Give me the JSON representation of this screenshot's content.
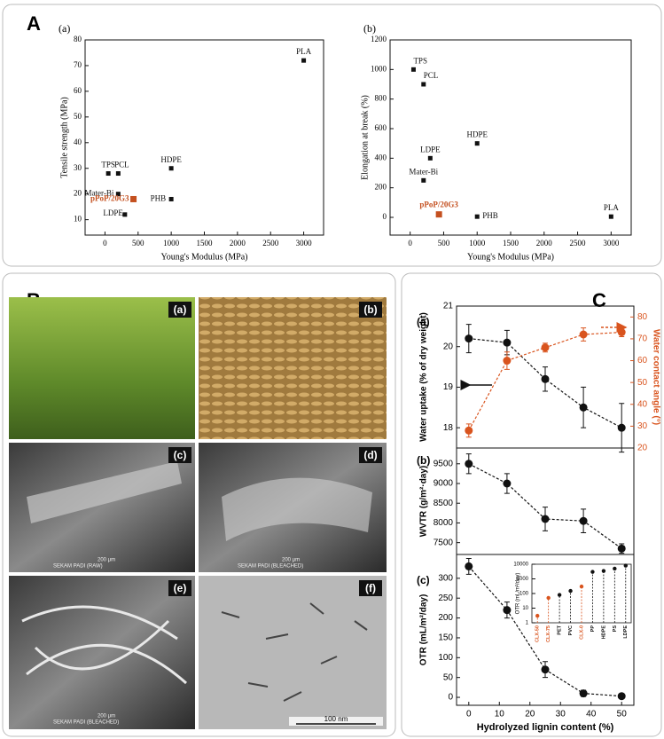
{
  "panel_letters": [
    "A",
    "B",
    "C"
  ],
  "photo_labels": [
    "(a)",
    "(b)",
    "(c)",
    "(d)",
    "(e)",
    "(f)"
  ],
  "sem_scale": "200 μm",
  "sem_captions": [
    "SEKAM PADI (RAW)",
    "SEKAM PADI (BLEACHED)",
    "SEKAM PADI (BLEACHED)"
  ],
  "tem_scale": "100 nm",
  "chart_data": [
    {
      "type": "scatter",
      "panel": "(a)",
      "xlabel": "Young's Modulus (MPa)",
      "ylabel": "Tensile strength (MPa)",
      "labels": [
        "TPS",
        "PCL",
        "Mater-Bi",
        "LDPE",
        "pPoP/20G3",
        "HDPE",
        "PHB",
        "PLA"
      ],
      "x": [
        50,
        200,
        200,
        300,
        430,
        1000,
        1000,
        3000
      ],
      "values": [
        28,
        28,
        20,
        12,
        18,
        30,
        18,
        72
      ],
      "colors": [
        "#111111",
        "#111111",
        "#111111",
        "#111111",
        "#c4501f",
        "#111111",
        "#111111",
        "#111111"
      ],
      "xlim": [
        -300,
        3300
      ],
      "ylim": [
        4,
        80
      ],
      "xticks": [
        0,
        500,
        1000,
        1500,
        2000,
        2500,
        3000
      ],
      "yticks": [
        10,
        20,
        30,
        40,
        50,
        60,
        70,
        80
      ]
    },
    {
      "type": "scatter",
      "panel": "(b)",
      "xlabel": "Young's Modulus (MPa)",
      "ylabel": "Elongation at break (%)",
      "labels": [
        "TPS",
        "PCL",
        "HDPE",
        "LDPE",
        "Mater-Bi",
        "pPoP/20G3",
        "PHB",
        "PLA"
      ],
      "x": [
        50,
        200,
        1000,
        300,
        200,
        430,
        1000,
        3000
      ],
      "values": [
        1000,
        900,
        500,
        400,
        250,
        20,
        5,
        5
      ],
      "colors": [
        "#111111",
        "#111111",
        "#111111",
        "#111111",
        "#111111",
        "#c4501f",
        "#111111",
        "#111111"
      ],
      "xlim": [
        -300,
        3300
      ],
      "ylim": [
        -120,
        1200
      ],
      "xticks": [
        0,
        500,
        1000,
        1500,
        2000,
        2500,
        3000
      ],
      "yticks": [
        0,
        200,
        400,
        600,
        800,
        1000,
        1200
      ]
    },
    {
      "type": "line",
      "panel": "(a)",
      "ylabel": "Water uptake (% of dry weight)",
      "y2label": "Water contact angle (°)",
      "x": [
        0,
        12.5,
        25,
        37.5,
        50
      ],
      "xlim": [
        -4,
        54
      ],
      "ylim": [
        17.5,
        21
      ],
      "yticks": [
        18,
        19,
        20,
        21
      ],
      "y2lim": [
        20,
        85
      ],
      "y2ticks": [
        20,
        30,
        40,
        50,
        60,
        70,
        80
      ],
      "series": [
        {
          "color": "#111111",
          "values": [
            20.2,
            20.1,
            19.2,
            18.5,
            18.0
          ],
          "errors": [
            0.35,
            0.3,
            0.3,
            0.5,
            0.6
          ]
        },
        {
          "color": "#d9541e",
          "axis": "y2",
          "values": [
            28,
            60,
            66,
            72,
            73
          ],
          "errors": [
            3,
            4,
            2,
            3,
            2
          ]
        }
      ]
    },
    {
      "type": "line",
      "panel": "(b)",
      "ylabel": "WVTR (g/m²·day)",
      "x": [
        0,
        12.5,
        25,
        37.5,
        50
      ],
      "xlim": [
        -4,
        54
      ],
      "ylim": [
        7200,
        9900
      ],
      "yticks": [
        7500,
        8000,
        8500,
        9000,
        9500
      ],
      "series": [
        {
          "color": "#111111",
          "values": [
            9500,
            9000,
            8100,
            8050,
            7350
          ],
          "errors": [
            250,
            250,
            300,
            300,
            120
          ]
        }
      ]
    },
    {
      "type": "line",
      "panel": "(c)",
      "ylabel": "OTR (mL/m²/day)",
      "xlabel": "Hydrolyzed lignin content (%)",
      "x": [
        0,
        12.5,
        25,
        37.5,
        50
      ],
      "xlim": [
        -4,
        54
      ],
      "xticks": [
        0,
        10,
        20,
        30,
        40,
        50
      ],
      "ylim": [
        -20,
        360
      ],
      "yticks": [
        0,
        50,
        100,
        150,
        200,
        250,
        300
      ],
      "series": [
        {
          "color": "#111111",
          "values": [
            330,
            220,
            70,
            10,
            3
          ],
          "errors": [
            20,
            20,
            20,
            8,
            5
          ]
        }
      ]
    },
    {
      "type": "lollipop",
      "ylabel": "OTR (mL/m²/day)",
      "log": true,
      "categories": [
        "CLX-50",
        "CLX-75",
        "PET",
        "PVC",
        "CLX-0",
        "PP",
        "HDPE",
        "PS",
        "LDPE"
      ],
      "values": [
        3,
        50,
        80,
        150,
        300,
        3000,
        3500,
        5000,
        8000
      ],
      "colors": [
        "#d9541e",
        "#d9541e",
        "#111111",
        "#111111",
        "#d9541e",
        "#111111",
        "#111111",
        "#111111",
        "#111111"
      ],
      "ylim": [
        1,
        10000
      ],
      "yticks": [
        1,
        10,
        100,
        1000,
        10000
      ]
    }
  ]
}
